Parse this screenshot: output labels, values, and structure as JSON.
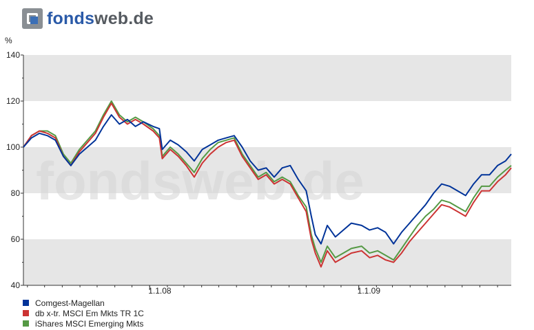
{
  "logo": {
    "part1": "fonds",
    "part2": "web.de"
  },
  "colors": {
    "band": "#e6e6e6",
    "axis": "#333333"
  },
  "chart_data": {
    "type": "line",
    "ylabel": "%",
    "ylim": [
      40,
      140
    ],
    "yticks": [
      40,
      60,
      80,
      100,
      120,
      140
    ],
    "xlim": [
      "2007-05-25",
      "2009-09-25"
    ],
    "xticks": [
      {
        "date": "2008-01-01",
        "label": "1.1.08"
      },
      {
        "date": "2009-01-01",
        "label": "1.1.09"
      }
    ],
    "watermark": "fondsweb.de",
    "series": [
      {
        "name": "Comgest-Magellan",
        "color": "#003399",
        "points": [
          [
            "2007-05-25",
            100
          ],
          [
            "2007-06-08",
            104
          ],
          [
            "2007-06-22",
            106
          ],
          [
            "2007-07-06",
            105
          ],
          [
            "2007-07-20",
            103
          ],
          [
            "2007-08-03",
            96
          ],
          [
            "2007-08-16",
            92
          ],
          [
            "2007-08-31",
            97
          ],
          [
            "2007-09-14",
            100
          ],
          [
            "2007-09-28",
            103
          ],
          [
            "2007-10-12",
            109
          ],
          [
            "2007-10-26",
            114
          ],
          [
            "2007-11-09",
            110
          ],
          [
            "2007-11-23",
            112
          ],
          [
            "2007-12-07",
            109
          ],
          [
            "2007-12-21",
            111
          ],
          [
            "2008-01-07",
            109
          ],
          [
            "2008-01-18",
            108
          ],
          [
            "2008-01-23",
            99
          ],
          [
            "2008-02-06",
            103
          ],
          [
            "2008-02-20",
            101
          ],
          [
            "2008-03-05",
            98
          ],
          [
            "2008-03-19",
            94
          ],
          [
            "2008-04-02",
            99
          ],
          [
            "2008-04-16",
            101
          ],
          [
            "2008-04-30",
            103
          ],
          [
            "2008-05-14",
            104
          ],
          [
            "2008-05-28",
            105
          ],
          [
            "2008-06-11",
            100
          ],
          [
            "2008-06-25",
            94
          ],
          [
            "2008-07-09",
            90
          ],
          [
            "2008-07-23",
            91
          ],
          [
            "2008-08-06",
            87
          ],
          [
            "2008-08-20",
            91
          ],
          [
            "2008-09-03",
            92
          ],
          [
            "2008-09-17",
            86
          ],
          [
            "2008-10-01",
            81
          ],
          [
            "2008-10-10",
            70
          ],
          [
            "2008-10-17",
            62
          ],
          [
            "2008-10-27",
            58
          ],
          [
            "2008-11-07",
            66
          ],
          [
            "2008-11-21",
            61
          ],
          [
            "2008-12-05",
            64
          ],
          [
            "2008-12-19",
            67
          ],
          [
            "2009-01-06",
            66
          ],
          [
            "2009-01-20",
            64
          ],
          [
            "2009-02-03",
            65
          ],
          [
            "2009-02-17",
            63
          ],
          [
            "2009-03-03",
            58
          ],
          [
            "2009-03-17",
            63
          ],
          [
            "2009-03-31",
            67
          ],
          [
            "2009-04-14",
            71
          ],
          [
            "2009-04-28",
            75
          ],
          [
            "2009-05-12",
            80
          ],
          [
            "2009-05-26",
            84
          ],
          [
            "2009-06-09",
            83
          ],
          [
            "2009-06-23",
            81
          ],
          [
            "2009-07-07",
            79
          ],
          [
            "2009-07-21",
            84
          ],
          [
            "2009-08-04",
            88
          ],
          [
            "2009-08-18",
            88
          ],
          [
            "2009-09-01",
            92
          ],
          [
            "2009-09-15",
            94
          ],
          [
            "2009-09-25",
            97
          ]
        ]
      },
      {
        "name": "db x-tr. MSCI Em Mkts TR 1C",
        "color": "#cc3333",
        "points": [
          [
            "2007-05-25",
            100
          ],
          [
            "2007-06-08",
            105
          ],
          [
            "2007-06-22",
            107
          ],
          [
            "2007-07-06",
            106
          ],
          [
            "2007-07-20",
            104
          ],
          [
            "2007-08-03",
            96
          ],
          [
            "2007-08-16",
            92
          ],
          [
            "2007-08-31",
            98
          ],
          [
            "2007-09-14",
            102
          ],
          [
            "2007-09-28",
            106
          ],
          [
            "2007-10-12",
            113
          ],
          [
            "2007-10-26",
            119
          ],
          [
            "2007-11-09",
            113
          ],
          [
            "2007-11-23",
            110
          ],
          [
            "2007-12-07",
            112
          ],
          [
            "2007-12-21",
            110
          ],
          [
            "2008-01-07",
            107
          ],
          [
            "2008-01-18",
            104
          ],
          [
            "2008-01-23",
            95
          ],
          [
            "2008-02-06",
            99
          ],
          [
            "2008-02-20",
            96
          ],
          [
            "2008-03-05",
            92
          ],
          [
            "2008-03-19",
            87
          ],
          [
            "2008-04-02",
            93
          ],
          [
            "2008-04-16",
            97
          ],
          [
            "2008-04-30",
            100
          ],
          [
            "2008-05-14",
            102
          ],
          [
            "2008-05-28",
            103
          ],
          [
            "2008-06-11",
            96
          ],
          [
            "2008-06-25",
            91
          ],
          [
            "2008-07-09",
            86
          ],
          [
            "2008-07-23",
            88
          ],
          [
            "2008-08-06",
            84
          ],
          [
            "2008-08-20",
            86
          ],
          [
            "2008-09-03",
            84
          ],
          [
            "2008-09-17",
            78
          ],
          [
            "2008-10-01",
            72
          ],
          [
            "2008-10-10",
            60
          ],
          [
            "2008-10-17",
            54
          ],
          [
            "2008-10-27",
            48
          ],
          [
            "2008-11-07",
            55
          ],
          [
            "2008-11-21",
            50
          ],
          [
            "2008-12-05",
            52
          ],
          [
            "2008-12-19",
            54
          ],
          [
            "2009-01-06",
            55
          ],
          [
            "2009-01-20",
            52
          ],
          [
            "2009-02-03",
            53
          ],
          [
            "2009-02-17",
            51
          ],
          [
            "2009-03-03",
            50
          ],
          [
            "2009-03-17",
            54
          ],
          [
            "2009-03-31",
            59
          ],
          [
            "2009-04-14",
            63
          ],
          [
            "2009-04-28",
            67
          ],
          [
            "2009-05-12",
            71
          ],
          [
            "2009-05-26",
            75
          ],
          [
            "2009-06-09",
            74
          ],
          [
            "2009-06-23",
            72
          ],
          [
            "2009-07-07",
            70
          ],
          [
            "2009-07-21",
            76
          ],
          [
            "2009-08-04",
            81
          ],
          [
            "2009-08-18",
            81
          ],
          [
            "2009-09-01",
            85
          ],
          [
            "2009-09-15",
            88
          ],
          [
            "2009-09-25",
            91
          ]
        ]
      },
      {
        "name": "iShares MSCI Emerging Mkts",
        "color": "#559944",
        "points": [
          [
            "2007-05-25",
            100
          ],
          [
            "2007-06-08",
            105
          ],
          [
            "2007-06-22",
            107
          ],
          [
            "2007-07-06",
            107
          ],
          [
            "2007-07-20",
            105
          ],
          [
            "2007-08-03",
            97
          ],
          [
            "2007-08-16",
            93
          ],
          [
            "2007-08-31",
            99
          ],
          [
            "2007-09-14",
            103
          ],
          [
            "2007-09-28",
            107
          ],
          [
            "2007-10-12",
            114
          ],
          [
            "2007-10-26",
            120
          ],
          [
            "2007-11-09",
            114
          ],
          [
            "2007-11-23",
            111
          ],
          [
            "2007-12-07",
            113
          ],
          [
            "2007-12-21",
            111
          ],
          [
            "2008-01-07",
            108
          ],
          [
            "2008-01-18",
            105
          ],
          [
            "2008-01-23",
            96
          ],
          [
            "2008-02-06",
            100
          ],
          [
            "2008-02-20",
            97
          ],
          [
            "2008-03-05",
            93
          ],
          [
            "2008-03-19",
            89
          ],
          [
            "2008-04-02",
            95
          ],
          [
            "2008-04-16",
            99
          ],
          [
            "2008-04-30",
            102
          ],
          [
            "2008-05-14",
            103
          ],
          [
            "2008-05-28",
            104
          ],
          [
            "2008-06-11",
            97
          ],
          [
            "2008-06-25",
            92
          ],
          [
            "2008-07-09",
            87
          ],
          [
            "2008-07-23",
            89
          ],
          [
            "2008-08-06",
            85
          ],
          [
            "2008-08-20",
            87
          ],
          [
            "2008-09-03",
            85
          ],
          [
            "2008-09-17",
            79
          ],
          [
            "2008-10-01",
            74
          ],
          [
            "2008-10-10",
            62
          ],
          [
            "2008-10-17",
            56
          ],
          [
            "2008-10-27",
            50
          ],
          [
            "2008-11-07",
            57
          ],
          [
            "2008-11-21",
            52
          ],
          [
            "2008-12-05",
            54
          ],
          [
            "2008-12-19",
            56
          ],
          [
            "2009-01-06",
            57
          ],
          [
            "2009-01-20",
            54
          ],
          [
            "2009-02-03",
            55
          ],
          [
            "2009-02-17",
            53
          ],
          [
            "2009-03-03",
            51
          ],
          [
            "2009-03-17",
            56
          ],
          [
            "2009-03-31",
            61
          ],
          [
            "2009-04-14",
            66
          ],
          [
            "2009-04-28",
            70
          ],
          [
            "2009-05-12",
            73
          ],
          [
            "2009-05-26",
            77
          ],
          [
            "2009-06-09",
            76
          ],
          [
            "2009-06-23",
            74
          ],
          [
            "2009-07-07",
            72
          ],
          [
            "2009-07-21",
            78
          ],
          [
            "2009-08-04",
            83
          ],
          [
            "2009-08-18",
            83
          ],
          [
            "2009-09-01",
            87
          ],
          [
            "2009-09-15",
            90
          ],
          [
            "2009-09-25",
            92
          ]
        ]
      }
    ]
  }
}
